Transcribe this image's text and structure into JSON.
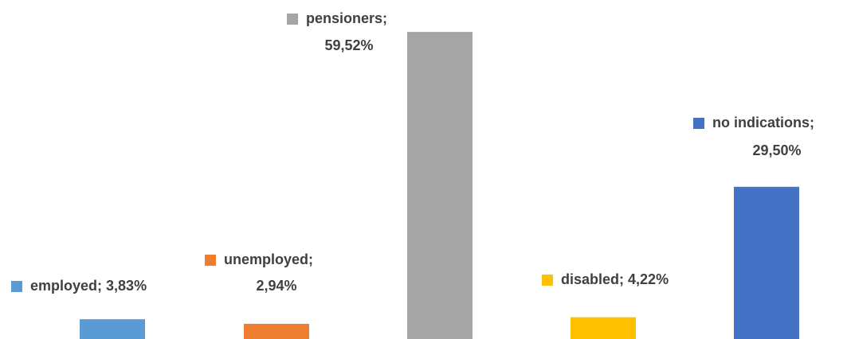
{
  "chart_data": {
    "type": "bar",
    "separator": "; ",
    "ylim": [
      0,
      60
    ],
    "series": [
      {
        "name": "employed",
        "color": "#5b9bd5",
        "values": [
          3.83
        ],
        "value_labels": [
          "3,83%"
        ]
      },
      {
        "name": "unemployed",
        "color": "#ed7d31",
        "values": [
          2.94
        ],
        "value_labels": [
          "2,94%"
        ]
      },
      {
        "name": "pensioners",
        "color": "#a5a5a5",
        "values": [
          59.52
        ],
        "value_labels": [
          "59,52%"
        ]
      },
      {
        "name": "disabled",
        "color": "#ffc000",
        "values": [
          4.22
        ],
        "value_labels": [
          "4,22%"
        ]
      },
      {
        "name": "no indications",
        "color": "#4472c4",
        "values": [
          29.5
        ],
        "value_labels": [
          "29,50%"
        ]
      }
    ]
  }
}
